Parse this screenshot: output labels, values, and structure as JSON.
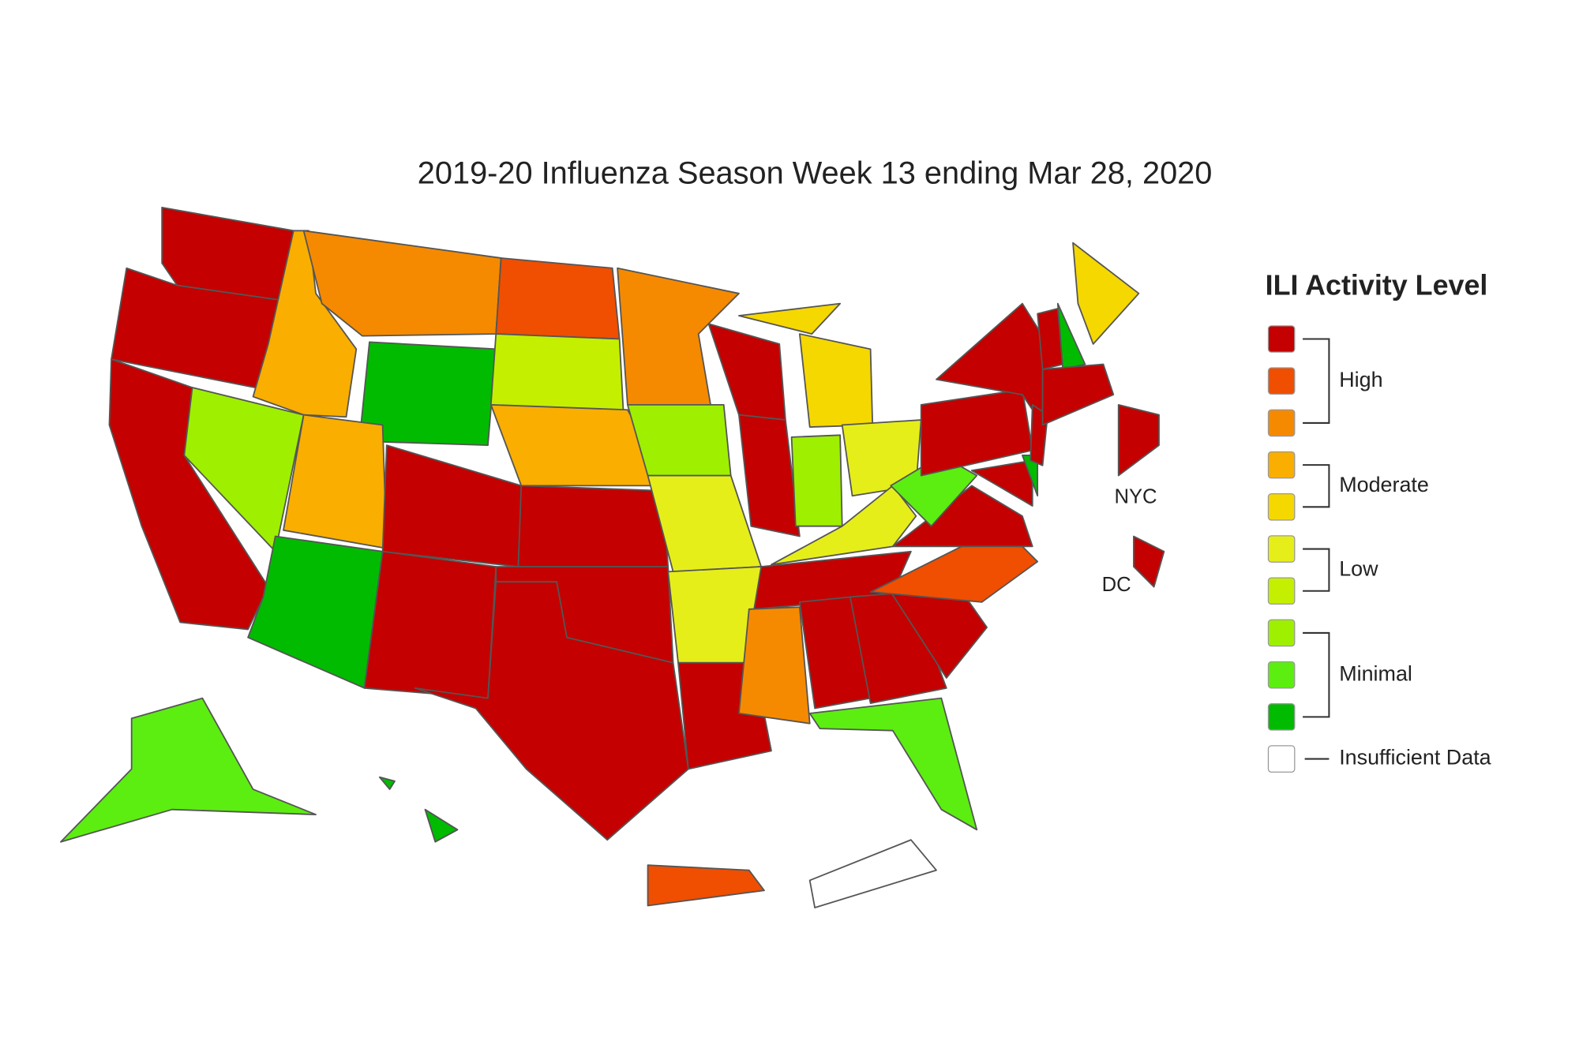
{
  "title": "2019-20 Influenza Season Week 13 ending Mar 28, 2020",
  "legend": {
    "title": "ILI Activity Level",
    "groups": [
      {
        "label": "High",
        "colors": [
          "#c40000",
          "#f04e00",
          "#f58a00"
        ]
      },
      {
        "label": "Moderate",
        "colors": [
          "#f9ae00",
          "#f5d800"
        ]
      },
      {
        "label": "Low",
        "colors": [
          "#e6ee1a",
          "#c4f000"
        ]
      },
      {
        "label": "Minimal",
        "colors": [
          "#9ef000",
          "#5cee10",
          "#00bb00"
        ]
      }
    ],
    "insufficient": {
      "label": "Insufficient Data",
      "color": "#ffffff"
    }
  },
  "labels": {
    "nyc": "NYC",
    "dc": "DC"
  }
}
